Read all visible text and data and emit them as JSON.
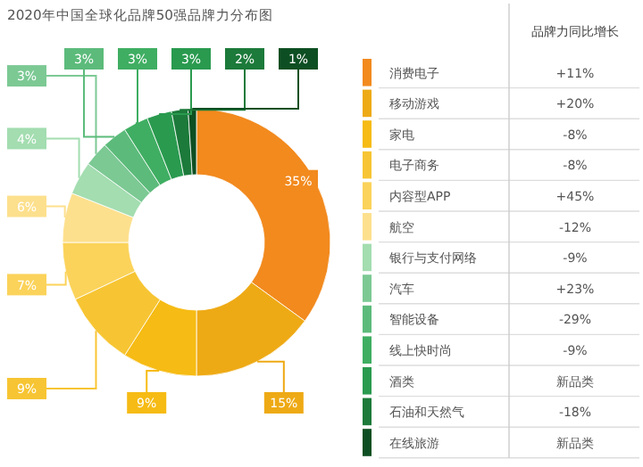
{
  "chart_data": [
    {
      "type": "donut",
      "title": "2020年中国全球化品牌50强品牌力分布图",
      "legend": "right",
      "categories": [
        "消费电子",
        "移动游戏",
        "家电",
        "电子商务",
        "内容型APP",
        "航空",
        "银行与支付网络",
        "汽车",
        "智能设备",
        "线上快时尚",
        "酒类",
        "石油和天然气",
        "在线旅游"
      ],
      "values": [
        35,
        15,
        9,
        9,
        7,
        6,
        4,
        3,
        3,
        3,
        3,
        2,
        1
      ],
      "value_labels": [
        "35%",
        "15%",
        "9%",
        "9%",
        "7%",
        "6%",
        "4%",
        "3%",
        "3%",
        "3%",
        "3%",
        "2%",
        "1%"
      ],
      "colors": [
        "#f28a1e",
        "#eeaa15",
        "#f6bb14",
        "#f7c533",
        "#fbd35a",
        "#fde08d",
        "#a3ddb0",
        "#7cc994",
        "#5cbb7b",
        "#3fae62",
        "#2a9a4f",
        "#1c7a3a",
        "#0d4f22"
      ]
    },
    {
      "type": "other",
      "title": "品牌力同比增长",
      "annotations": [
        "+11%",
        "+20%",
        "-8%",
        "-8%",
        "+45%",
        "-12%",
        "-9%",
        "+23%",
        "-29%",
        "-9%",
        "新品类",
        "-18%",
        "新品类"
      ]
    }
  ]
}
